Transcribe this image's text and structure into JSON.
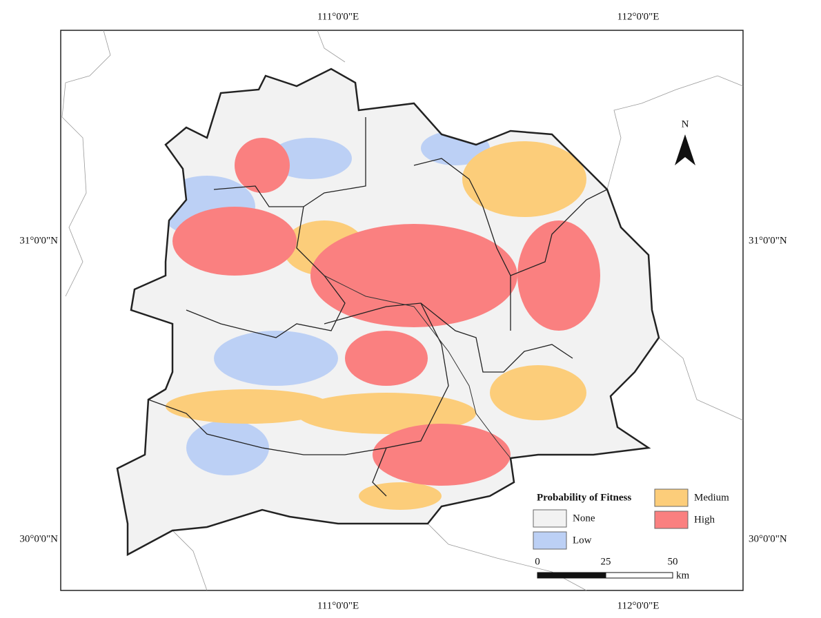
{
  "map": {
    "graticule": {
      "top": [
        "111°0'0\"E",
        "112°0'0\"E"
      ],
      "bottom": [
        "111°0'0\"E",
        "112°0'0\"E"
      ],
      "left": [
        "31°0'0\"N",
        "30°0'0\"N"
      ],
      "right": [
        "31°0'0\"N",
        "30°0'0\"N"
      ]
    },
    "north_arrow": "N",
    "legend": {
      "title": "Probability of Fitness",
      "items": [
        {
          "label": "None",
          "color": "#f2f2f2"
        },
        {
          "label": "Low",
          "color": "#bcd0f5"
        },
        {
          "label": "Medium",
          "color": "#fccd7a"
        },
        {
          "label": "High",
          "color": "#fa8080"
        }
      ]
    },
    "scale_bar": {
      "labels": [
        "0",
        "25",
        "50"
      ],
      "unit": "km"
    }
  }
}
